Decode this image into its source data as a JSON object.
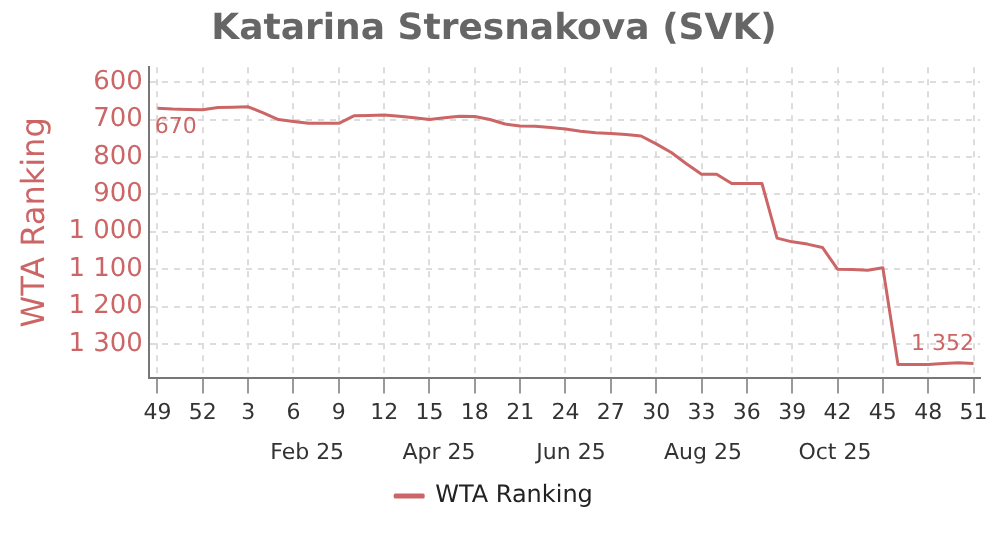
{
  "chart_data": {
    "type": "line",
    "title": "Katarina Stresnakova (SVK)",
    "ylabel": "WTA Ranking",
    "x": [
      "2024-12-02",
      "2024-12-09",
      "2024-12-16",
      "2024-12-23",
      "2024-12-30",
      "2025-01-06",
      "2025-01-13",
      "2025-01-20",
      "2025-01-27",
      "2025-02-03",
      "2025-02-10",
      "2025-02-17",
      "2025-02-24",
      "2025-03-03",
      "2025-03-10",
      "2025-03-17",
      "2025-03-24",
      "2025-03-31",
      "2025-04-07",
      "2025-04-14",
      "2025-04-21",
      "2025-04-28",
      "2025-05-05",
      "2025-05-12",
      "2025-05-19",
      "2025-05-26",
      "2025-06-02",
      "2025-06-09",
      "2025-06-16",
      "2025-06-23",
      "2025-06-30",
      "2025-07-07",
      "2025-07-14",
      "2025-07-21",
      "2025-07-28",
      "2025-08-04",
      "2025-08-11",
      "2025-08-18",
      "2025-08-25",
      "2025-09-01",
      "2025-09-08",
      "2025-09-15",
      "2025-09-22",
      "2025-09-29",
      "2025-10-06",
      "2025-10-13",
      "2025-10-20",
      "2025-10-27",
      "2025-11-03",
      "2025-11-10",
      "2025-11-17",
      "2025-11-24",
      "2025-12-01",
      "2025-12-08",
      "2025-12-15"
    ],
    "series": [
      {
        "name": "WTA Ranking",
        "color": "#cc6666",
        "values": [
          670,
          672,
          673,
          674,
          668,
          667,
          666,
          682,
          700,
          705,
          710,
          710,
          710,
          690,
          689,
          688,
          691,
          695,
          700,
          695,
          691,
          692,
          700,
          712,
          717,
          718,
          721,
          725,
          731,
          735,
          737,
          740,
          744,
          765,
          788,
          818,
          846,
          846,
          871,
          871,
          871,
          1017,
          1027,
          1033,
          1042,
          1100,
          1101,
          1103,
          1096,
          1355,
          1355,
          1355,
          1352,
          1350,
          1352
        ],
        "value_labels": [
          "670",
          null,
          null,
          null,
          null,
          null,
          null,
          null,
          null,
          null,
          null,
          null,
          null,
          null,
          null,
          null,
          null,
          null,
          null,
          null,
          null,
          null,
          null,
          null,
          null,
          null,
          null,
          null,
          null,
          null,
          null,
          null,
          null,
          null,
          null,
          null,
          null,
          null,
          null,
          null,
          null,
          null,
          null,
          null,
          null,
          null,
          null,
          null,
          null,
          null,
          null,
          null,
          null,
          null,
          "1 352"
        ]
      }
    ],
    "xlim": [
      "2024-11-28",
      "2025-12-18"
    ],
    "xticks": [
      {
        "value": "2024-12-02",
        "label": "49"
      },
      {
        "value": "2024-12-23",
        "label": "52"
      },
      {
        "value": "2025-01-13",
        "label": "3"
      },
      {
        "value": "2025-02-03",
        "label": "6"
      },
      {
        "value": "2025-02-24",
        "label": "9"
      },
      {
        "value": "2025-03-17",
        "label": "12"
      },
      {
        "value": "2025-04-07",
        "label": "15"
      },
      {
        "value": "2025-04-28",
        "label": "18"
      },
      {
        "value": "2025-05-19",
        "label": "21"
      },
      {
        "value": "2025-06-09",
        "label": "24"
      },
      {
        "value": "2025-06-30",
        "label": "27"
      },
      {
        "value": "2025-07-21",
        "label": "30"
      },
      {
        "value": "2025-08-11",
        "label": "33"
      },
      {
        "value": "2025-09-01",
        "label": "36"
      },
      {
        "value": "2025-09-22",
        "label": "39"
      },
      {
        "value": "2025-10-13",
        "label": "42"
      },
      {
        "value": "2025-11-03",
        "label": "45"
      },
      {
        "value": "2025-11-24",
        "label": "48"
      },
      {
        "value": "2025-12-15",
        "label": "51"
      }
    ],
    "ylim": [
      1390,
      560
    ],
    "yticks": [
      600,
      700,
      800,
      900,
      {
        "value": 1000,
        "label": "1 000"
      },
      {
        "value": 1100,
        "label": "1 100"
      },
      {
        "value": 1200,
        "label": "1 200"
      },
      {
        "value": 1300,
        "label": "1 300"
      }
    ],
    "annotations": [
      "Feb 25",
      "Apr 25",
      "Jun 25",
      "Aug 25",
      "Oct 25"
    ],
    "grid": true,
    "legend": "bottom",
    "marker": "none",
    "line_style": "solid"
  }
}
